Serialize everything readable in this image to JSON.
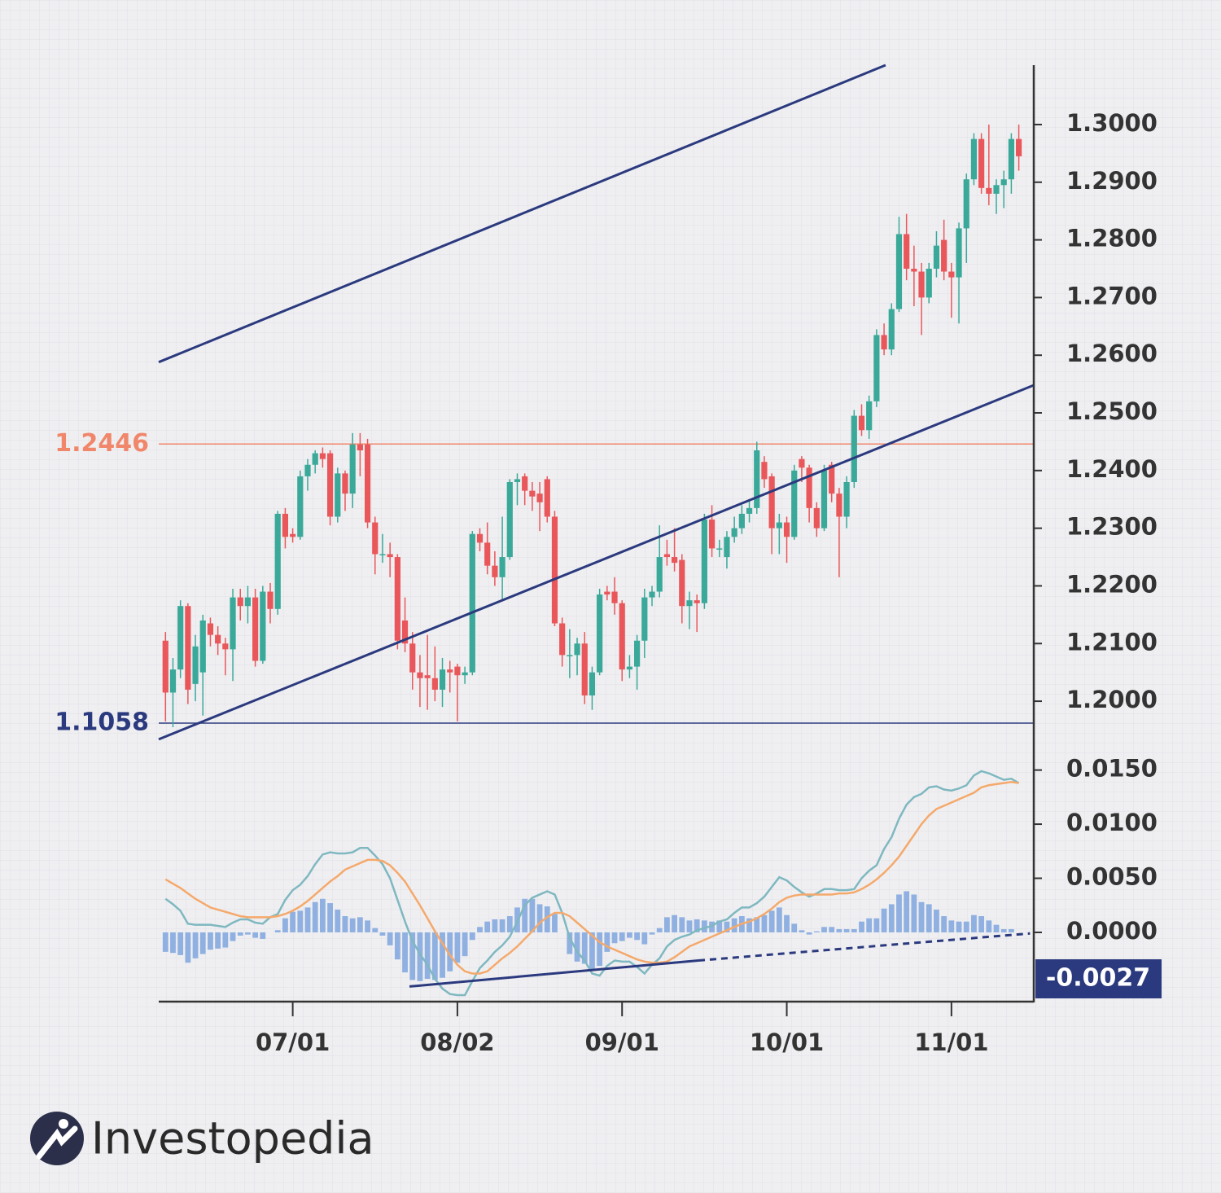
{
  "brand": "Investopedia",
  "chart_data": [
    {
      "type": "candlestick",
      "xlim": [
        -0.9,
        116
      ],
      "ylim": [
        1.1962,
        1.3103
      ],
      "yticks": [
        {
          "value": 1.2,
          "label": "1.2000"
        },
        {
          "value": 1.21,
          "label": "1.2100"
        },
        {
          "value": 1.22,
          "label": "1.2200"
        },
        {
          "value": 1.23,
          "label": "1.2300"
        },
        {
          "value": 1.24,
          "label": "1.2400"
        },
        {
          "value": 1.25,
          "label": "1.2500"
        },
        {
          "value": 1.26,
          "label": "1.2600"
        },
        {
          "value": 1.27,
          "label": "1.2700"
        },
        {
          "value": 1.28,
          "label": "1.2800"
        },
        {
          "value": 1.29,
          "label": "1.2900"
        },
        {
          "value": 1.3,
          "label": "1.3000"
        }
      ],
      "up_color": "#3aa99a",
      "down_color": "#e9575b",
      "levels": [
        {
          "value": 1.2446,
          "label": "1.2446",
          "color": "#f0876b"
        }
      ],
      "support_label": "1.1058",
      "support_color": "#2b3a7e",
      "trend_color": "#2b3a7e",
      "trendlines": [
        {
          "points": [
            [
              -0.9,
              1.2588
            ],
            [
              96.2,
              1.3103
            ]
          ]
        },
        {
          "points": [
            [
              -0.9,
              1.1934
            ],
            [
              116,
              1.2548
            ]
          ]
        }
      ],
      "ohlc": [
        [
          1.2105,
          1.212,
          1.1965,
          1.2015
        ],
        [
          1.2015,
          1.2075,
          1.1955,
          1.2055
        ],
        [
          1.2055,
          1.2175,
          1.204,
          1.2165
        ],
        [
          1.2165,
          1.217,
          1.1995,
          1.202
        ],
        [
          1.203,
          1.2115,
          1.2,
          1.2095
        ],
        [
          1.205,
          1.215,
          1.1975,
          1.214
        ],
        [
          1.2135,
          1.2145,
          1.2095,
          1.2115
        ],
        [
          1.2115,
          1.213,
          1.208,
          1.21
        ],
        [
          1.21,
          1.211,
          1.2045,
          1.209
        ],
        [
          1.209,
          1.2195,
          1.2035,
          1.218
        ],
        [
          1.218,
          1.2195,
          1.214,
          1.2165
        ],
        [
          1.2165,
          1.22,
          1.2135,
          1.218
        ],
        [
          1.218,
          1.2195,
          1.206,
          1.207
        ],
        [
          1.207,
          1.22,
          1.2065,
          1.219
        ],
        [
          1.219,
          1.2205,
          1.2135,
          1.216
        ],
        [
          1.216,
          1.233,
          1.215,
          1.2325
        ],
        [
          1.2325,
          1.2335,
          1.2265,
          1.2285
        ],
        [
          1.229,
          1.23,
          1.2275,
          1.2285
        ],
        [
          1.2285,
          1.24,
          1.228,
          1.239
        ],
        [
          1.239,
          1.242,
          1.2365,
          1.241
        ],
        [
          1.241,
          1.2435,
          1.2395,
          1.243
        ],
        [
          1.243,
          1.244,
          1.2405,
          1.242
        ],
        [
          1.243,
          1.2435,
          1.2305,
          1.232
        ],
        [
          1.232,
          1.2405,
          1.231,
          1.2395
        ],
        [
          1.2395,
          1.24,
          1.233,
          1.236
        ],
        [
          1.236,
          1.2465,
          1.2335,
          1.2445
        ],
        [
          1.2445,
          1.2465,
          1.239,
          1.2435
        ],
        [
          1.2445,
          1.2455,
          1.23,
          1.231
        ],
        [
          1.231,
          1.232,
          1.222,
          1.2255
        ],
        [
          1.2255,
          1.229,
          1.224,
          1.2255
        ],
        [
          1.2255,
          1.2275,
          1.2215,
          1.225
        ],
        [
          1.225,
          1.2255,
          1.209,
          1.2105
        ],
        [
          1.214,
          1.218,
          1.2085,
          1.21
        ],
        [
          1.21,
          1.212,
          1.202,
          1.205
        ],
        [
          1.205,
          1.208,
          1.199,
          1.204
        ],
        [
          1.2045,
          1.2115,
          1.1985,
          1.204
        ],
        [
          1.204,
          1.2095,
          1.2,
          1.202
        ],
        [
          1.202,
          1.2075,
          1.199,
          1.2055
        ],
        [
          1.2055,
          1.207,
          1.2015,
          1.205
        ],
        [
          1.206,
          1.2065,
          1.1965,
          1.2045
        ],
        [
          1.2045,
          1.206,
          1.203,
          1.205
        ],
        [
          1.205,
          1.2295,
          1.2045,
          1.229
        ],
        [
          1.229,
          1.23,
          1.226,
          1.2275
        ],
        [
          1.2275,
          1.231,
          1.222,
          1.2235
        ],
        [
          1.2235,
          1.226,
          1.22,
          1.2215
        ],
        [
          1.2215,
          1.232,
          1.2175,
          1.225
        ],
        [
          1.225,
          1.2385,
          1.2245,
          1.238
        ],
        [
          1.238,
          1.2395,
          1.234,
          1.2385
        ],
        [
          1.239,
          1.2395,
          1.234,
          1.2365
        ],
        [
          1.2365,
          1.238,
          1.233,
          1.2355
        ],
        [
          1.236,
          1.238,
          1.2295,
          1.2345
        ],
        [
          1.2385,
          1.239,
          1.231,
          1.232
        ],
        [
          1.232,
          1.233,
          1.213,
          1.2135
        ],
        [
          1.2135,
          1.2145,
          1.206,
          1.208
        ],
        [
          1.208,
          1.2125,
          1.204,
          1.208
        ],
        [
          1.208,
          1.211,
          1.2045,
          1.21
        ],
        [
          1.21,
          1.212,
          1.1995,
          1.201
        ],
        [
          1.201,
          1.206,
          1.1985,
          1.205
        ],
        [
          1.205,
          1.2195,
          1.2045,
          1.2185
        ],
        [
          1.219,
          1.22,
          1.2175,
          1.2185
        ],
        [
          1.219,
          1.2215,
          1.215,
          1.217
        ],
        [
          1.217,
          1.2175,
          1.2035,
          1.2055
        ],
        [
          1.2055,
          1.208,
          1.204,
          1.206
        ],
        [
          1.206,
          1.2115,
          1.202,
          1.2105
        ],
        [
          1.2105,
          1.2195,
          1.2075,
          1.218
        ],
        [
          1.218,
          1.22,
          1.2165,
          1.219
        ],
        [
          1.219,
          1.2305,
          1.218,
          1.225
        ],
        [
          1.2255,
          1.228,
          1.2235,
          1.225
        ],
        [
          1.225,
          1.23,
          1.2225,
          1.224
        ],
        [
          1.2245,
          1.2255,
          1.2135,
          1.2165
        ],
        [
          1.2165,
          1.219,
          1.2125,
          1.2175
        ],
        [
          1.2175,
          1.2185,
          1.212,
          1.217
        ],
        [
          1.217,
          1.2325,
          1.216,
          1.2315
        ],
        [
          1.2315,
          1.234,
          1.225,
          1.2265
        ],
        [
          1.2265,
          1.228,
          1.225,
          1.2265
        ],
        [
          1.225,
          1.2295,
          1.223,
          1.2285
        ],
        [
          1.2285,
          1.232,
          1.2275,
          1.23
        ],
        [
          1.23,
          1.234,
          1.229,
          1.2325
        ],
        [
          1.2325,
          1.235,
          1.231,
          1.2335
        ],
        [
          1.2335,
          1.245,
          1.2325,
          1.2435
        ],
        [
          1.2415,
          1.2425,
          1.237,
          1.2385
        ],
        [
          1.239,
          1.2395,
          1.2255,
          1.23
        ],
        [
          1.23,
          1.2325,
          1.2255,
          1.231
        ],
        [
          1.231,
          1.232,
          1.224,
          1.2285
        ],
        [
          1.2285,
          1.241,
          1.228,
          1.24
        ],
        [
          1.242,
          1.2425,
          1.238,
          1.2405
        ],
        [
          1.2405,
          1.241,
          1.231,
          1.2335
        ],
        [
          1.2335,
          1.2345,
          1.2285,
          1.23
        ],
        [
          1.23,
          1.241,
          1.2295,
          1.24
        ],
        [
          1.241,
          1.2415,
          1.2345,
          1.236
        ],
        [
          1.236,
          1.237,
          1.2215,
          1.232
        ],
        [
          1.232,
          1.239,
          1.23,
          1.238
        ],
        [
          1.238,
          1.2505,
          1.237,
          1.2495
        ],
        [
          1.2495,
          1.2515,
          1.246,
          1.247
        ],
        [
          1.247,
          1.253,
          1.2455,
          1.252
        ],
        [
          1.252,
          1.2645,
          1.251,
          1.2635
        ],
        [
          1.2635,
          1.2655,
          1.26,
          1.261
        ],
        [
          1.261,
          1.269,
          1.26,
          1.268
        ],
        [
          1.268,
          1.284,
          1.2675,
          1.281
        ],
        [
          1.281,
          1.2845,
          1.273,
          1.275
        ],
        [
          1.275,
          1.279,
          1.2685,
          1.2745
        ],
        [
          1.2745,
          1.276,
          1.2635,
          1.27
        ],
        [
          1.27,
          1.276,
          1.269,
          1.275
        ],
        [
          1.275,
          1.2815,
          1.2735,
          1.279
        ],
        [
          1.28,
          1.2835,
          1.273,
          1.2745
        ],
        [
          1.2745,
          1.276,
          1.2665,
          1.2735
        ],
        [
          1.2735,
          1.283,
          1.2655,
          1.282
        ],
        [
          1.282,
          1.2915,
          1.276,
          1.2905
        ],
        [
          1.2905,
          1.2985,
          1.2895,
          1.2975
        ],
        [
          1.2975,
          1.2985,
          1.288,
          1.289
        ],
        [
          1.289,
          1.3,
          1.286,
          1.288
        ],
        [
          1.288,
          1.2905,
          1.2845,
          1.2895
        ],
        [
          1.2895,
          1.292,
          1.2855,
          1.2905
        ],
        [
          1.2905,
          1.2985,
          1.288,
          1.2975
        ],
        [
          1.2975,
          1.3,
          1.292,
          1.2945
        ]
      ]
    },
    {
      "type": "macd",
      "xlim": [
        -0.9,
        116
      ],
      "ylim": [
        -0.0064,
        0.0158
      ],
      "xticks": [
        {
          "value": 17,
          "label": "07/01"
        },
        {
          "value": 39,
          "label": "08/02"
        },
        {
          "value": 61,
          "label": "09/01"
        },
        {
          "value": 83,
          "label": "10/01"
        },
        {
          "value": 105,
          "label": "11/01"
        }
      ],
      "yticks": [
        {
          "value": 0,
          "label": "0.0000"
        },
        {
          "value": 0.005,
          "label": "0.0050"
        },
        {
          "value": 0.01,
          "label": "0.0100"
        },
        {
          "value": 0.015,
          "label": "0.0150"
        }
      ],
      "callout": "-0.0027",
      "callout_color": "#2b3a7e",
      "trend_color": "#2b3a7e",
      "trend_solid": [
        [
          32.6,
          -0.005
        ],
        [
          71.2,
          -0.0026
        ]
      ],
      "trend_dashed": [
        [
          71.2,
          -0.0026
        ],
        [
          115.5,
          -0.0001
        ]
      ],
      "histogram": {
        "color": "#8fb0e0",
        "values": [
          -0.0018,
          -0.0019,
          -0.0021,
          -0.0028,
          -0.0024,
          -0.002,
          -0.0016,
          -0.0015,
          -0.0014,
          -0.0008,
          -0.0003,
          -0.0002,
          -0.0005,
          -0.0006,
          0.0,
          0.0002,
          0.0013,
          0.0019,
          0.002,
          0.0023,
          0.0028,
          0.0031,
          0.0027,
          0.0021,
          0.0015,
          0.0013,
          0.0014,
          0.0011,
          0.0004,
          -0.0003,
          -0.0012,
          -0.0025,
          -0.0037,
          -0.0044,
          -0.0045,
          -0.0043,
          -0.0044,
          -0.0042,
          -0.0036,
          -0.0028,
          -0.0022,
          -0.0007,
          0.0005,
          0.001,
          0.0012,
          0.0012,
          0.0015,
          0.0023,
          0.0031,
          0.0031,
          0.0026,
          0.0024,
          0.0017,
          0.0,
          -0.002,
          -0.0027,
          -0.0029,
          -0.0035,
          -0.0031,
          -0.0018,
          -0.001,
          -0.0008,
          -0.0005,
          -0.0007,
          -0.0011,
          -0.0002,
          0.0004,
          0.0014,
          0.0016,
          0.0014,
          0.0011,
          0.0012,
          0.0011,
          0.001,
          0.0011,
          0.001,
          0.0013,
          0.0015,
          0.0013,
          0.0014,
          0.0016,
          0.002,
          0.0023,
          0.0016,
          0.0008,
          0.0002,
          -0.0002,
          0.0001,
          0.0005,
          0.0005,
          0.0003,
          0.0003,
          0.0003,
          0.001,
          0.0013,
          0.0013,
          0.0022,
          0.0026,
          0.0035,
          0.0038,
          0.0035,
          0.0028,
          0.0026,
          0.0021,
          0.0015,
          0.0011,
          0.001,
          0.001,
          0.0016,
          0.0015,
          0.0011,
          0.0007,
          0.0003,
          0.0003,
          0.0
        ]
      },
      "macd": {
        "color": "#7fb8c0",
        "values": [
          0.0031,
          0.0026,
          0.002,
          0.0008,
          0.0007,
          0.0007,
          0.0007,
          0.0006,
          0.0005,
          0.0009,
          0.0012,
          0.0012,
          0.0009,
          0.0008,
          0.0014,
          0.0017,
          0.003,
          0.0039,
          0.0044,
          0.0052,
          0.0063,
          0.0072,
          0.0074,
          0.0073,
          0.0073,
          0.0074,
          0.0078,
          0.0078,
          0.0071,
          0.0063,
          0.005,
          0.003,
          0.001,
          -0.0008,
          -0.002,
          -0.003,
          -0.0043,
          -0.0052,
          -0.0057,
          -0.0058,
          -0.0058,
          -0.0045,
          -0.0033,
          -0.0026,
          -0.0018,
          -0.0012,
          -0.0004,
          0.001,
          0.0025,
          0.0032,
          0.0035,
          0.0038,
          0.0035,
          0.0018,
          -0.0005,
          -0.0018,
          -0.0026,
          -0.0038,
          -0.004,
          -0.0031,
          -0.0026,
          -0.0027,
          -0.0027,
          -0.0032,
          -0.0038,
          -0.003,
          -0.0024,
          -0.0013,
          -0.0007,
          -0.0004,
          -0.0002,
          0.0002,
          0.0004,
          0.0006,
          0.001,
          0.0012,
          0.0018,
          0.0023,
          0.0023,
          0.0027,
          0.0033,
          0.0042,
          0.0051,
          0.0048,
          0.0042,
          0.0037,
          0.0033,
          0.0036,
          0.004,
          0.004,
          0.0039,
          0.0039,
          0.004,
          0.005,
          0.0057,
          0.0062,
          0.0077,
          0.0088,
          0.0105,
          0.0118,
          0.0125,
          0.0128,
          0.0134,
          0.0135,
          0.0132,
          0.0131,
          0.0133,
          0.0136,
          0.0145,
          0.0149,
          0.0147,
          0.0144,
          0.0141,
          0.0142,
          0.0138
        ]
      },
      "signal": {
        "color": "#f5a96b",
        "values": [
          0.0049,
          0.0045,
          0.0041,
          0.0036,
          0.0031,
          0.0027,
          0.0023,
          0.0021,
          0.0019,
          0.0017,
          0.0015,
          0.0014,
          0.0014,
          0.0014,
          0.0014,
          0.0015,
          0.0017,
          0.002,
          0.0024,
          0.0029,
          0.0035,
          0.0041,
          0.0047,
          0.0052,
          0.0058,
          0.0061,
          0.0064,
          0.0067,
          0.0067,
          0.0066,
          0.0062,
          0.0055,
          0.0047,
          0.0036,
          0.0025,
          0.0013,
          0.0001,
          -0.001,
          -0.0021,
          -0.003,
          -0.0036,
          -0.0038,
          -0.0038,
          -0.0036,
          -0.003,
          -0.0024,
          -0.0019,
          -0.0013,
          -0.0006,
          0.0001,
          0.0009,
          0.0014,
          0.0018,
          0.0018,
          0.0015,
          0.0009,
          0.0003,
          -0.0003,
          -0.0009,
          -0.0013,
          -0.0016,
          -0.0019,
          -0.0022,
          -0.0025,
          -0.0027,
          -0.0028,
          -0.0028,
          -0.0027,
          -0.0023,
          -0.0018,
          -0.0013,
          -0.001,
          -0.0007,
          -0.0004,
          -0.0001,
          0.0002,
          0.0005,
          0.0008,
          0.001,
          0.0013,
          0.0017,
          0.0022,
          0.0028,
          0.0032,
          0.0034,
          0.0035,
          0.0035,
          0.0035,
          0.0035,
          0.0035,
          0.0036,
          0.0036,
          0.0037,
          0.004,
          0.0044,
          0.0049,
          0.0055,
          0.0062,
          0.007,
          0.008,
          0.009,
          0.01,
          0.0108,
          0.0114,
          0.0117,
          0.012,
          0.0123,
          0.0126,
          0.0129,
          0.0134,
          0.0136,
          0.0137,
          0.0138,
          0.0139,
          0.0138
        ]
      }
    }
  ]
}
